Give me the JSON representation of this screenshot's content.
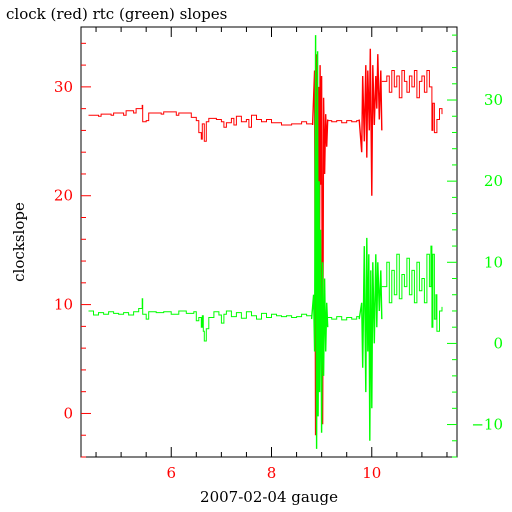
{
  "chart_data": {
    "type": "line",
    "title": "clock (red) rtc (green) slopes",
    "xlabel": "2007-02-04 gauge",
    "ylabel": "clockslope",
    "grid": false,
    "x_axis": {
      "range": [
        4.2,
        11.7
      ],
      "ticks": [
        6,
        8,
        10
      ],
      "tick_labels": [
        "6",
        "8",
        "10"
      ],
      "minor_step": 0.5
    },
    "y_left": {
      "range": [
        -4,
        35.5
      ],
      "ticks": [
        0,
        10,
        20,
        30
      ],
      "tick_labels": [
        "0",
        "10",
        "20",
        "30"
      ],
      "minor_step": 2,
      "color": "#ff0000"
    },
    "y_right": {
      "range": [
        -14,
        39
      ],
      "ticks": [
        -10,
        0,
        10,
        20,
        30
      ],
      "tick_labels": [
        "−10",
        "0",
        "10",
        "20",
        "30"
      ],
      "minor_step": 2,
      "color": "#00ff00"
    },
    "series": [
      {
        "name": "clock",
        "axis": "left",
        "color": "#ff0000",
        "segments": [
          {
            "x": [
              4.35,
              4.55,
              4.6,
              4.8,
              4.85,
              5.05,
              5.1,
              5.25,
              5.3,
              5.42,
              5.43,
              5.5,
              5.55,
              5.8,
              5.85,
              6.1,
              6.15,
              6.4,
              6.5,
              6.55,
              6.6,
              6.62,
              6.66,
              6.7,
              6.75,
              6.9,
              7.0,
              7.05,
              7.1,
              7.2,
              7.25,
              7.3,
              7.4,
              7.5,
              7.55,
              7.6,
              7.7,
              7.8,
              7.9,
              8.0,
              8.2,
              8.4,
              8.6,
              8.7,
              8.82
            ],
            "y": [
              27.4,
              27.3,
              27.5,
              27.4,
              27.6,
              27.4,
              27.8,
              27.6,
              28.0,
              28.3,
              26.8,
              26.9,
              27.6,
              27.5,
              27.7,
              27.4,
              27.6,
              27.2,
              26.9,
              25.8,
              25.2,
              26.6,
              25.0,
              26.8,
              27.1,
              27.0,
              26.8,
              26.3,
              26.7,
              27.1,
              26.5,
              27.3,
              26.8,
              27.0,
              26.3,
              27.4,
              27.0,
              26.8,
              27.0,
              26.7,
              26.5,
              26.6,
              26.8,
              26.6,
              26.8
            ]
          },
          {
            "x": [
              8.82,
              8.86,
              8.88,
              8.9,
              8.92,
              8.94,
              8.95,
              8.97,
              8.98,
              9.0,
              9.02,
              9.04,
              9.06,
              9.08,
              9.1,
              9.12
            ],
            "y": [
              26.5,
              31.5,
              -2.0,
              33.0,
              19.0,
              30.0,
              2.0,
              32.0,
              21.0,
              31.0,
              -1.0,
              29.0,
              22.0,
              27.5,
              24.5,
              27.0
            ],
            "dense": true
          },
          {
            "x": [
              9.12,
              9.2,
              9.3,
              9.4,
              9.5,
              9.6,
              9.7,
              9.75
            ],
            "y": [
              26.9,
              26.8,
              26.9,
              26.7,
              26.9,
              26.8,
              26.9,
              27.0
            ]
          },
          {
            "x": [
              9.75,
              9.8,
              9.82,
              9.85,
              9.88,
              9.9,
              9.92,
              9.95,
              9.97,
              10.0,
              10.02,
              10.05,
              10.08,
              10.1,
              10.12,
              10.15,
              10.18,
              10.2
            ],
            "y": [
              27.0,
              24.0,
              31.0,
              25.0,
              32.0,
              23.5,
              31.5,
              26.0,
              33.5,
              20.0,
              32.0,
              26.5,
              31.0,
              28.0,
              33.0,
              27.0,
              31.5,
              26.0
            ],
            "dense": true
          },
          {
            "x": [
              10.2,
              10.3,
              10.35,
              10.4,
              10.45,
              10.5,
              10.55,
              10.6,
              10.65,
              10.7,
              10.75,
              10.8,
              10.85,
              10.9,
              10.95,
              11.0,
              11.05,
              11.1,
              11.15,
              11.2,
              11.22,
              11.25,
              11.3,
              11.35,
              11.4
            ],
            "y": [
              30.5,
              31.0,
              29.5,
              31.5,
              30.0,
              31.0,
              29.0,
              31.5,
              30.5,
              29.5,
              31.0,
              30.0,
              31.5,
              29.0,
              30.5,
              31.0,
              29.5,
              31.5,
              30.0,
              26.0,
              28.5,
              25.8,
              27.0,
              28.0,
              27.5
            ]
          }
        ]
      },
      {
        "name": "rtc",
        "axis": "right",
        "color": "#00ff00",
        "segments": [
          {
            "x": [
              4.35,
              4.45,
              4.55,
              4.65,
              4.75,
              4.85,
              4.95,
              5.05,
              5.15,
              5.25,
              5.35,
              5.42,
              5.43,
              5.5,
              5.55,
              5.7,
              5.85,
              6.0,
              6.15,
              6.3,
              6.45,
              6.5,
              6.55,
              6.6,
              6.62,
              6.64,
              6.66,
              6.7,
              6.75,
              6.85,
              6.95,
              7.0,
              7.05,
              7.1,
              7.2,
              7.3,
              7.4,
              7.5,
              7.6,
              7.7,
              7.8,
              7.9,
              8.0,
              8.1,
              8.2,
              8.3,
              8.4,
              8.5,
              8.6,
              8.7,
              8.8
            ],
            "y": [
              4.0,
              3.5,
              3.8,
              3.6,
              3.9,
              3.7,
              3.6,
              3.8,
              3.5,
              3.9,
              4.3,
              5.5,
              3.6,
              3.0,
              3.9,
              3.8,
              3.9,
              3.6,
              4.0,
              3.7,
              3.9,
              2.8,
              3.2,
              2.0,
              3.4,
              1.5,
              0.3,
              1.8,
              3.2,
              3.9,
              3.5,
              2.5,
              3.6,
              4.0,
              3.3,
              3.8,
              3.1,
              3.9,
              3.4,
              3.0,
              3.7,
              3.2,
              3.6,
              3.4,
              3.3,
              3.4,
              3.2,
              3.3,
              3.6,
              3.4,
              3.5
            ]
          },
          {
            "x": [
              8.8,
              8.84,
              8.86,
              8.88,
              8.9,
              8.92,
              8.93,
              8.95,
              8.96,
              8.98,
              9.0,
              9.02,
              9.04,
              9.06,
              9.08,
              9.1,
              9.12
            ],
            "y": [
              3.0,
              6.0,
              -1.0,
              38.0,
              -13.0,
              36.0,
              -9.0,
              20.0,
              -6.0,
              14.0,
              -11.0,
              10.0,
              -4.0,
              8.0,
              -1.0,
              5.0,
              2.0
            ],
            "dense": true
          },
          {
            "x": [
              9.12,
              9.2,
              9.3,
              9.4,
              9.5,
              9.6,
              9.7,
              9.75
            ],
            "y": [
              3.2,
              3.0,
              3.3,
              2.9,
              3.2,
              3.0,
              3.3,
              3.1
            ]
          },
          {
            "x": [
              9.75,
              9.8,
              9.82,
              9.85,
              9.88,
              9.9,
              9.92,
              9.94,
              9.96,
              9.98,
              10.0,
              10.02,
              10.05,
              10.08,
              10.1,
              10.12,
              10.15,
              10.18,
              10.2
            ],
            "y": [
              3.0,
              5.0,
              -3.0,
              12.0,
              -6.0,
              13.0,
              -1.0,
              11.0,
              -12.0,
              9.0,
              -8.0,
              10.0,
              0.0,
              11.0,
              2.0,
              10.0,
              4.0,
              9.0,
              3.0
            ],
            "dense": true
          },
          {
            "x": [
              10.2,
              10.3,
              10.35,
              10.4,
              10.45,
              10.5,
              10.55,
              10.6,
              10.65,
              10.7,
              10.75,
              10.8,
              10.85,
              10.9,
              10.95,
              11.0,
              11.05,
              11.1,
              11.15,
              11.18,
              11.2,
              11.22,
              11.25,
              11.28,
              11.3,
              11.35,
              11.4
            ],
            "y": [
              7.0,
              10.0,
              5.0,
              9.0,
              6.0,
              11.0,
              5.5,
              8.5,
              7.0,
              10.5,
              6.0,
              9.0,
              5.0,
              10.0,
              6.5,
              8.0,
              5.0,
              11.0,
              7.0,
              12.0,
              2.0,
              11.0,
              3.0,
              6.0,
              1.5,
              4.0,
              4.5
            ]
          }
        ]
      }
    ]
  }
}
